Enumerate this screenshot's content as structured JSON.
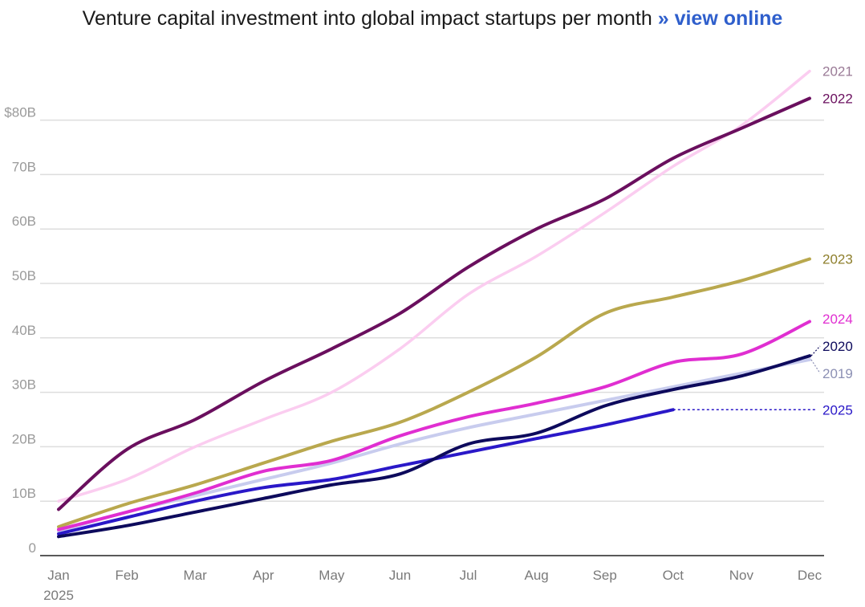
{
  "header": {
    "title": "Venture capital investment into global impact startups per month",
    "link_label": "» view online"
  },
  "chart_data": {
    "type": "line",
    "title": "Venture capital investment into global impact startups per month",
    "xlabel": "",
    "ylabel": "",
    "categories": [
      "Jan",
      "Feb",
      "Mar",
      "Apr",
      "May",
      "Jun",
      "Jul",
      "Aug",
      "Sep",
      "Oct",
      "Nov",
      "Dec"
    ],
    "x_year_label": "2025",
    "yticks": [
      {
        "value": 0,
        "label": "0"
      },
      {
        "value": 10,
        "label": "10B"
      },
      {
        "value": 20,
        "label": "20B"
      },
      {
        "value": 30,
        "label": "30B"
      },
      {
        "value": 40,
        "label": "40B"
      },
      {
        "value": 50,
        "label": "50B"
      },
      {
        "value": 60,
        "label": "60B"
      },
      {
        "value": 70,
        "label": "70B"
      },
      {
        "value": 80,
        "label": "$80B"
      }
    ],
    "ylim": [
      0,
      89
    ],
    "grid": true,
    "series": [
      {
        "name": "2019",
        "color": "#c8ccee",
        "width": 4,
        "values": [
          4.5,
          8.0,
          11.0,
          14.0,
          17.0,
          20.5,
          23.5,
          26.0,
          28.5,
          31.0,
          33.5,
          36.0
        ]
      },
      {
        "name": "2021",
        "color": "#fbcdf0",
        "width": 3.5,
        "values": [
          10.0,
          14.0,
          20.0,
          25.0,
          30.0,
          38.0,
          48.0,
          55.0,
          63.0,
          71.5,
          79.0,
          89.0
        ]
      },
      {
        "name": "2023",
        "color": "#b9a84e",
        "width": 4,
        "values": [
          5.3,
          9.5,
          13.0,
          17.0,
          21.0,
          24.5,
          30.0,
          36.5,
          44.5,
          47.5,
          50.5,
          54.5
        ]
      },
      {
        "name": "2024",
        "color": "#e02ed1",
        "width": 4,
        "values": [
          4.8,
          8.0,
          11.5,
          15.5,
          17.5,
          22.0,
          25.5,
          28.0,
          31.0,
          35.5,
          37.0,
          43.0
        ]
      },
      {
        "name": "2025",
        "color": "#2a18c8",
        "width": 4,
        "values": [
          4.0,
          7.0,
          10.0,
          12.5,
          14.0,
          16.5,
          19.0,
          21.5,
          24.0,
          26.8,
          null,
          null
        ]
      },
      {
        "name": "2020",
        "color": "#0d0a5c",
        "width": 4,
        "values": [
          3.5,
          5.5,
          8.0,
          10.5,
          13.0,
          15.0,
          20.5,
          22.5,
          27.5,
          30.5,
          33.0,
          36.7
        ]
      },
      {
        "name": "2022",
        "color": "#6a0f5e",
        "width": 4,
        "values": [
          8.5,
          19.5,
          25.0,
          32.0,
          38.0,
          44.5,
          53.0,
          60.0,
          65.5,
          73.0,
          78.5,
          84.0
        ]
      }
    ],
    "end_labels": [
      {
        "name": "2021",
        "value": 89.0,
        "color": "#9a7a96"
      },
      {
        "name": "2022",
        "value": 84.0,
        "color": "#6a0f5e"
      },
      {
        "name": "2023",
        "value": 54.5,
        "color": "#8e7f2c"
      },
      {
        "name": "2024",
        "value": 43.5,
        "color": "#e02ed1"
      },
      {
        "name": "2020",
        "value": 38.5,
        "color": "#0d0a5c"
      },
      {
        "name": "2019",
        "value": 33.5,
        "color": "#8c90b4"
      },
      {
        "name": "2025",
        "value": 26.8,
        "color": "#2a18c8"
      }
    ]
  }
}
